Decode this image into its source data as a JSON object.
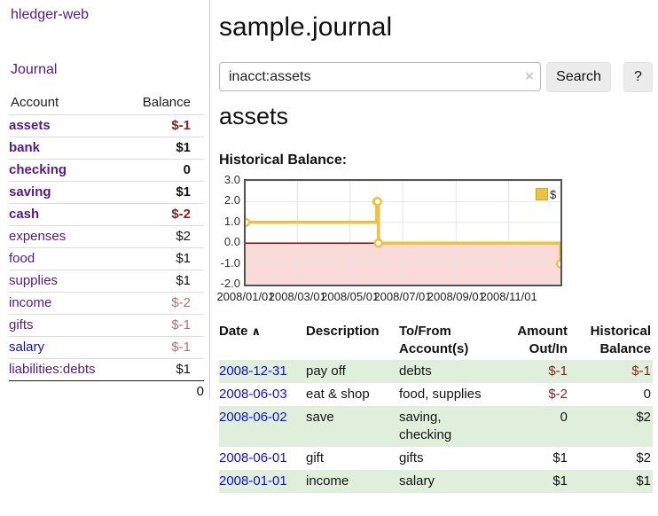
{
  "sidebar": {
    "app_title": "hledger-web",
    "nav_journal": "Journal",
    "accounts_table": {
      "header_account": "Account",
      "header_balance": "Balance",
      "items": [
        {
          "name": "assets",
          "balance": "$-1"
        },
        {
          "name": "bank",
          "balance": "$1"
        },
        {
          "name": "checking",
          "balance": "0"
        },
        {
          "name": "saving",
          "balance": "$1"
        },
        {
          "name": "cash",
          "balance": "$-2"
        },
        {
          "name": "expenses",
          "balance": "$2"
        },
        {
          "name": "food",
          "balance": "$1"
        },
        {
          "name": "supplies",
          "balance": "$1"
        },
        {
          "name": "income",
          "balance": "$-2"
        },
        {
          "name": "gifts",
          "balance": "$-1"
        },
        {
          "name": "salary",
          "balance": "$-1"
        },
        {
          "name": "liabilities:debts",
          "balance": "$1"
        }
      ],
      "total": "0"
    }
  },
  "main": {
    "page_title": "sample.journal",
    "search": {
      "value": "inacct:assets",
      "clear_icon": "×",
      "search_button": "Search",
      "help_button": "?"
    },
    "account_heading": "assets",
    "section_label": "Historical Balance:"
  },
  "chart_data": {
    "type": "line",
    "step": true,
    "title": "Historical Balance",
    "series": [
      {
        "name": "$",
        "color": "#edc240",
        "x": [
          "2008-01-01",
          "2008-06-01",
          "2008-06-02",
          "2008-06-03",
          "2008-12-31"
        ],
        "values": [
          1,
          2,
          2,
          0,
          -1
        ]
      }
    ],
    "xlim": [
      "2008-01-01",
      "2008-12-31"
    ],
    "ylim": [
      -2,
      3
    ],
    "y_ticks": [
      3,
      2,
      1,
      0,
      -1,
      -2
    ],
    "y_tick_labels": [
      "3.0",
      "2.0",
      "1.0",
      "0.0",
      "-1.0",
      "-2.0"
    ],
    "x_tick_labels": [
      "2008/01/01",
      "2008/03/01",
      "2008/05/01",
      "2008/07/01",
      "2008/09/01",
      "2008/11/01"
    ],
    "legend_label": "$",
    "legend_position": "top-right",
    "grid": true,
    "negative_region_color": "#fbdada",
    "zero_line_color": "#990000"
  },
  "register": {
    "headers": {
      "date": "Date",
      "sort_indicator": "∧",
      "description": "Description",
      "accounts_line1": "To/From",
      "accounts_line2": "Account(s)",
      "amount_line1": "Amount",
      "amount_line2": "Out/In",
      "balance_line1": "Historical",
      "balance_line2": "Balance"
    },
    "rows": [
      {
        "date": "2008-12-31",
        "description": "pay off",
        "accounts": "debts",
        "amount": "$-1",
        "balance": "$-1"
      },
      {
        "date": "2008-06-03",
        "description": "eat & shop",
        "accounts": "food, supplies",
        "amount": "$-2",
        "balance": "0"
      },
      {
        "date": "2008-06-02",
        "description": "save",
        "accounts": "saving, checking",
        "amount": "0",
        "balance": "$2"
      },
      {
        "date": "2008-06-01",
        "description": "gift",
        "accounts": "gifts",
        "amount": "$1",
        "balance": "$2"
      },
      {
        "date": "2008-01-01",
        "description": "income",
        "accounts": "salary",
        "amount": "$1",
        "balance": "$1"
      }
    ]
  },
  "colors": {
    "link_purple": "#551a8b",
    "link_blue": "#0f0fdd",
    "negative_strong": "#8b1e1e",
    "negative_dim": "#bb6f6f",
    "row_stripe_green": "#e0eedc",
    "chart_line_gold": "#edc240"
  }
}
